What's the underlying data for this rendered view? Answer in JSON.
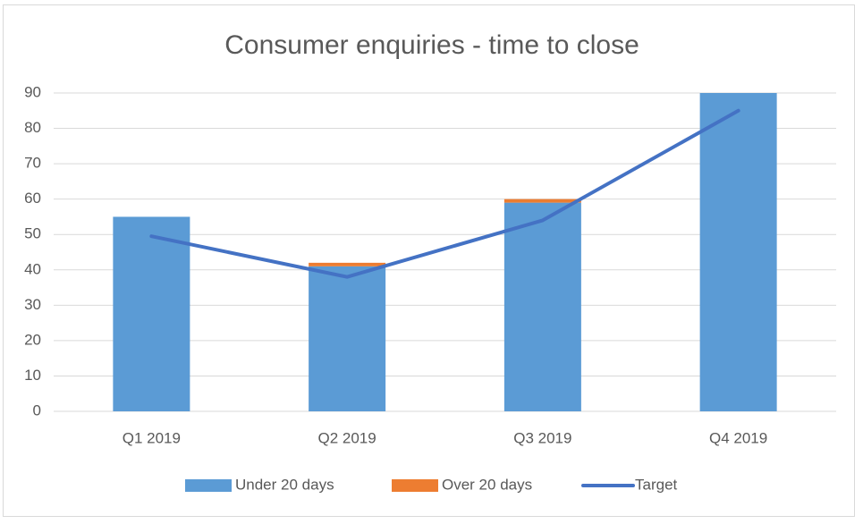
{
  "chart_data": {
    "type": "bar",
    "stacked": true,
    "title": "Consumer enquiries - time to close",
    "categories": [
      "Q1 2019",
      "Q2 2019",
      "Q3 2019",
      "Q4 2019"
    ],
    "series": [
      {
        "name": "Under 20 days",
        "color": "#5b9bd5",
        "values": [
          55,
          41,
          59,
          90
        ]
      },
      {
        "name": "Over 20 days",
        "color": "#ed7d31",
        "values": [
          0,
          1,
          1,
          0
        ]
      },
      {
        "name": "Target",
        "type": "line",
        "color": "#4472c4",
        "values": [
          49.5,
          38,
          54,
          85
        ]
      }
    ],
    "ylim": [
      0,
      90
    ],
    "yticks": [
      0,
      10,
      20,
      30,
      40,
      50,
      60,
      70,
      80,
      90
    ],
    "grid": true,
    "legend": "bottom"
  }
}
